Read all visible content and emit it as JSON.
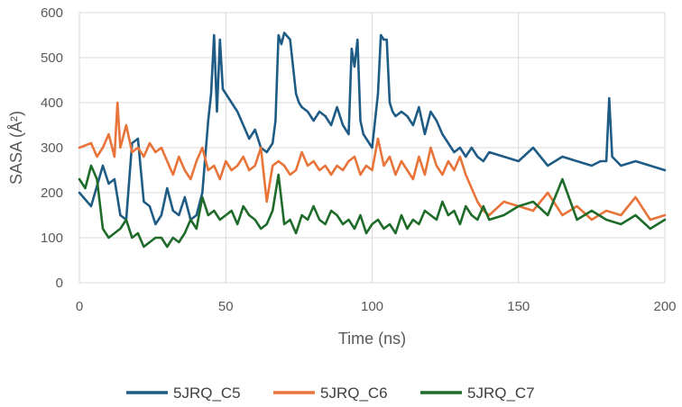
{
  "chart_data": {
    "type": "line",
    "xlabel": "Time (ns)",
    "ylabel": "SASA (Å²)",
    "xlim": [
      0,
      200
    ],
    "ylim": [
      0,
      600
    ],
    "xticks": [
      0,
      50,
      100,
      150,
      200
    ],
    "yticks": [
      0,
      100,
      200,
      300,
      400,
      500,
      600
    ],
    "grid": true,
    "legend_position": "bottom",
    "series": [
      {
        "name": "5JRQ_C5",
        "color": "#1F5C85",
        "x": [
          0,
          4,
          8,
          10,
          12,
          14,
          16,
          18,
          20,
          22,
          24,
          26,
          28,
          30,
          32,
          34,
          36,
          38,
          40,
          42,
          44,
          45,
          46,
          47,
          48,
          49,
          50,
          52,
          54,
          56,
          58,
          60,
          62,
          64,
          66,
          67,
          68,
          69,
          70,
          72,
          74,
          75,
          76,
          78,
          80,
          82,
          84,
          86,
          88,
          90,
          92,
          93,
          94,
          95,
          96,
          97,
          98,
          100,
          102,
          103,
          104,
          105,
          106,
          107,
          108,
          110,
          112,
          114,
          116,
          118,
          120,
          122,
          124,
          126,
          128,
          130,
          132,
          134,
          136,
          138,
          140,
          145,
          150,
          155,
          160,
          165,
          170,
          175,
          178,
          180,
          181,
          182,
          185,
          190,
          195,
          200
        ],
        "y": [
          200,
          170,
          260,
          220,
          230,
          150,
          140,
          310,
          320,
          180,
          170,
          130,
          150,
          210,
          160,
          150,
          190,
          140,
          150,
          200,
          360,
          420,
          550,
          380,
          540,
          430,
          420,
          400,
          380,
          350,
          320,
          340,
          300,
          290,
          310,
          360,
          550,
          530,
          555,
          540,
          420,
          400,
          390,
          380,
          360,
          380,
          370,
          350,
          390,
          350,
          330,
          520,
          480,
          540,
          360,
          330,
          320,
          300,
          420,
          550,
          540,
          540,
          400,
          380,
          370,
          380,
          370,
          350,
          390,
          330,
          380,
          360,
          330,
          310,
          290,
          300,
          280,
          300,
          280,
          270,
          290,
          280,
          270,
          300,
          260,
          280,
          270,
          260,
          270,
          270,
          410,
          280,
          260,
          270,
          260,
          250
        ]
      },
      {
        "name": "5JRQ_C6",
        "color": "#E8743A",
        "x": [
          0,
          4,
          6,
          8,
          10,
          12,
          13,
          14,
          16,
          18,
          20,
          22,
          24,
          26,
          28,
          30,
          32,
          34,
          36,
          38,
          40,
          42,
          44,
          46,
          48,
          50,
          52,
          54,
          56,
          58,
          60,
          62,
          64,
          66,
          68,
          70,
          72,
          74,
          76,
          78,
          80,
          82,
          84,
          86,
          88,
          90,
          92,
          94,
          96,
          98,
          100,
          102,
          104,
          106,
          108,
          110,
          112,
          114,
          116,
          118,
          120,
          122,
          124,
          126,
          128,
          130,
          132,
          134,
          136,
          138,
          140,
          145,
          150,
          155,
          160,
          165,
          170,
          175,
          180,
          185,
          190,
          195,
          200
        ],
        "y": [
          300,
          310,
          280,
          300,
          330,
          280,
          400,
          300,
          350,
          290,
          300,
          280,
          310,
          290,
          300,
          270,
          240,
          280,
          250,
          230,
          270,
          300,
          250,
          260,
          230,
          270,
          250,
          260,
          280,
          250,
          260,
          300,
          180,
          260,
          270,
          260,
          240,
          250,
          290,
          260,
          270,
          250,
          260,
          240,
          260,
          250,
          270,
          280,
          240,
          260,
          250,
          320,
          260,
          280,
          240,
          270,
          250,
          230,
          280,
          240,
          300,
          260,
          240,
          270,
          250,
          280,
          240,
          210,
          180,
          160,
          150,
          180,
          170,
          160,
          200,
          150,
          170,
          140,
          160,
          150,
          190,
          140,
          150
        ]
      },
      {
        "name": "5JRQ_C7",
        "color": "#1E6B2A",
        "x": [
          0,
          2,
          4,
          6,
          8,
          10,
          12,
          14,
          16,
          18,
          20,
          22,
          24,
          26,
          28,
          30,
          32,
          34,
          36,
          38,
          40,
          42,
          44,
          46,
          48,
          50,
          52,
          54,
          56,
          58,
          60,
          62,
          64,
          66,
          68,
          70,
          72,
          74,
          76,
          78,
          80,
          82,
          84,
          86,
          88,
          90,
          92,
          94,
          96,
          98,
          100,
          102,
          104,
          106,
          108,
          110,
          112,
          114,
          116,
          118,
          120,
          122,
          124,
          126,
          128,
          130,
          132,
          134,
          136,
          138,
          140,
          145,
          150,
          155,
          160,
          165,
          170,
          175,
          180,
          185,
          190,
          195,
          200
        ],
        "y": [
          230,
          210,
          260,
          230,
          120,
          100,
          110,
          120,
          140,
          100,
          110,
          80,
          90,
          100,
          100,
          80,
          100,
          90,
          110,
          140,
          120,
          190,
          150,
          160,
          140,
          150,
          160,
          130,
          170,
          150,
          140,
          120,
          130,
          160,
          240,
          130,
          140,
          110,
          150,
          140,
          170,
          140,
          130,
          160,
          150,
          130,
          140,
          120,
          150,
          110,
          130,
          140,
          120,
          130,
          110,
          150,
          120,
          140,
          130,
          160,
          150,
          140,
          180,
          150,
          160,
          130,
          170,
          150,
          140,
          170,
          140,
          150,
          170,
          180,
          150,
          230,
          140,
          160,
          140,
          130,
          150,
          120,
          140
        ]
      }
    ]
  }
}
